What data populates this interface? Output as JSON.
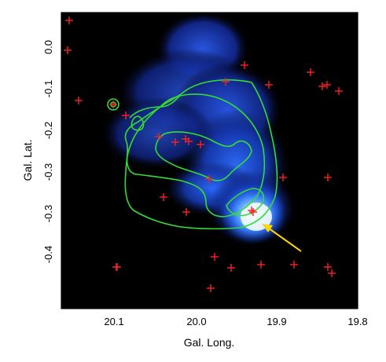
{
  "figure": {
    "x_axis_title": "Gal. Long.",
    "y_axis_title": "Gal. Lat.",
    "x_ticks": [
      "20.1",
      "20.0",
      "19.9",
      "19.8"
    ],
    "y_ticks": [
      "0.0",
      "-0.1",
      "-0.2",
      "-0.3",
      "-0.3",
      "-0.4"
    ],
    "colors": {
      "frame": "#000000",
      "contour": "#33dd33",
      "marker": "#ff2020",
      "arrow": "#ffd700",
      "emission_core": "#f4fbff",
      "emission_mid": "#2f7bff",
      "emission_outer": "#1335b8"
    },
    "markers": {
      "symbol": "plus",
      "count": 33
    }
  }
}
